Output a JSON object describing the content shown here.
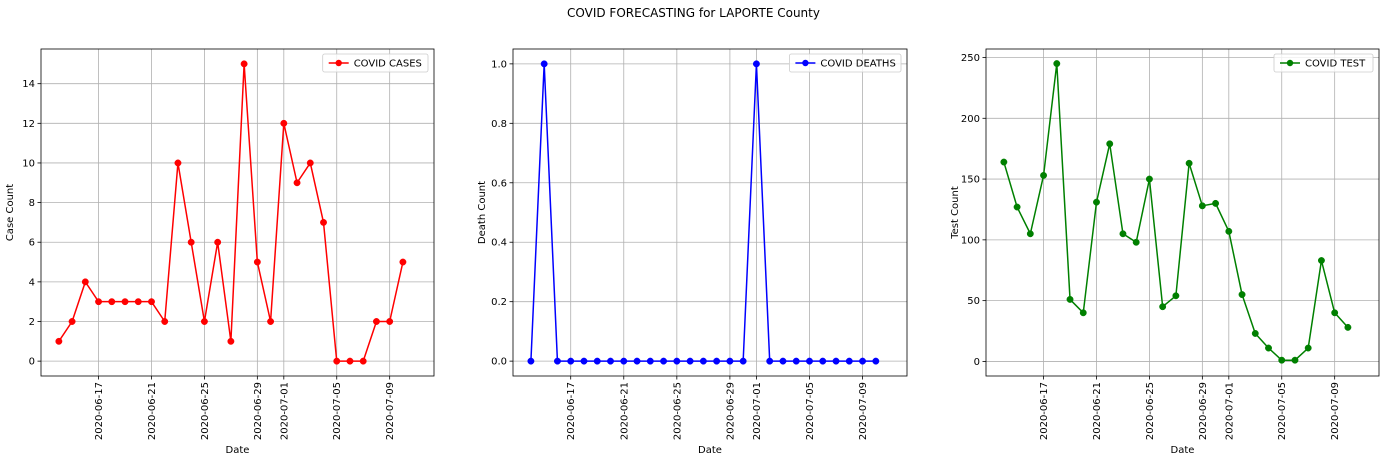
{
  "figure": {
    "title": "COVID FORECASTING for LAPORTE County"
  },
  "chart_data": [
    {
      "type": "line",
      "xlabel": "Date",
      "ylabel": "Case Count",
      "xticks": [
        "2020-06-17",
        "2020-06-21",
        "2020-06-25",
        "2020-06-29",
        "2020-07-01",
        "2020-07-05",
        "2020-07-09"
      ],
      "yticks": [
        0,
        2,
        4,
        6,
        8,
        10,
        12,
        14
      ],
      "ylim": [
        -0.75,
        15.75
      ],
      "grid": true,
      "legend": "top-right",
      "series": [
        {
          "name": "COVID CASES",
          "color": "#ff0000",
          "x": [
            "2020-06-14",
            "2020-06-15",
            "2020-06-16",
            "2020-06-17",
            "2020-06-18",
            "2020-06-19",
            "2020-06-20",
            "2020-06-21",
            "2020-06-22",
            "2020-06-23",
            "2020-06-24",
            "2020-06-25",
            "2020-06-26",
            "2020-06-27",
            "2020-06-28",
            "2020-06-29",
            "2020-06-30",
            "2020-07-01",
            "2020-07-02",
            "2020-07-03",
            "2020-07-04",
            "2020-07-05",
            "2020-07-06",
            "2020-07-07",
            "2020-07-08",
            "2020-07-09",
            "2020-07-10",
            "2020-07-11"
          ],
          "values": [
            1,
            2,
            4,
            3,
            3,
            3,
            3,
            3,
            2,
            10,
            6,
            2,
            6,
            1,
            15,
            5,
            2,
            12,
            9,
            10,
            7,
            0,
            0,
            0,
            2,
            2,
            5,
            null
          ]
        }
      ]
    },
    {
      "type": "line",
      "xlabel": "Date",
      "ylabel": "Death Count",
      "xticks": [
        "2020-06-17",
        "2020-06-21",
        "2020-06-25",
        "2020-06-29",
        "2020-07-01",
        "2020-07-05",
        "2020-07-09"
      ],
      "yticks": [
        0.0,
        0.2,
        0.4,
        0.6,
        0.8,
        1.0
      ],
      "ylim": [
        -0.05,
        1.05
      ],
      "grid": true,
      "legend": "top-right",
      "series": [
        {
          "name": "COVID DEATHS",
          "color": "#0000ff",
          "x": [
            "2020-06-14",
            "2020-06-15",
            "2020-06-16",
            "2020-06-17",
            "2020-06-18",
            "2020-06-19",
            "2020-06-20",
            "2020-06-21",
            "2020-06-22",
            "2020-06-23",
            "2020-06-24",
            "2020-06-25",
            "2020-06-26",
            "2020-06-27",
            "2020-06-28",
            "2020-06-29",
            "2020-06-30",
            "2020-07-01",
            "2020-07-02",
            "2020-07-03",
            "2020-07-04",
            "2020-07-05",
            "2020-07-06",
            "2020-07-07",
            "2020-07-08",
            "2020-07-09",
            "2020-07-10",
            "2020-07-11"
          ],
          "values": [
            0,
            1,
            0,
            0,
            0,
            0,
            0,
            0,
            0,
            0,
            0,
            0,
            0,
            0,
            0,
            0,
            0,
            1,
            0,
            0,
            0,
            0,
            0,
            0,
            0,
            0,
            0,
            null
          ]
        }
      ]
    },
    {
      "type": "line",
      "xlabel": "Date",
      "ylabel": "Test Count",
      "xticks": [
        "2020-06-17",
        "2020-06-21",
        "2020-06-25",
        "2020-06-29",
        "2020-07-01",
        "2020-07-05",
        "2020-07-09"
      ],
      "yticks": [
        0,
        50,
        100,
        150,
        200,
        250
      ],
      "ylim": [
        -12,
        257
      ],
      "grid": true,
      "legend": "top-right",
      "series": [
        {
          "name": "COVID TEST",
          "color": "#008000",
          "x": [
            "2020-06-14",
            "2020-06-15",
            "2020-06-16",
            "2020-06-17",
            "2020-06-18",
            "2020-06-19",
            "2020-06-20",
            "2020-06-21",
            "2020-06-22",
            "2020-06-23",
            "2020-06-24",
            "2020-06-25",
            "2020-06-26",
            "2020-06-27",
            "2020-06-28",
            "2020-06-29",
            "2020-06-30",
            "2020-07-01",
            "2020-07-02",
            "2020-07-03",
            "2020-07-04",
            "2020-07-05",
            "2020-07-06",
            "2020-07-07",
            "2020-07-08",
            "2020-07-09",
            "2020-07-10",
            "2020-07-11"
          ],
          "values": [
            164,
            127,
            105,
            153,
            245,
            51,
            40,
            131,
            179,
            105,
            98,
            150,
            45,
            54,
            163,
            128,
            130,
            107,
            55,
            23,
            11,
            1,
            1,
            11,
            83,
            40,
            28,
            null
          ]
        }
      ]
    }
  ]
}
